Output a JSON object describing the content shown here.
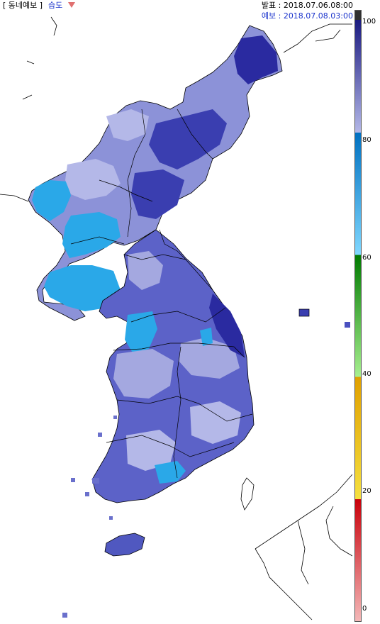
{
  "header": {
    "forecast_label": "[ 동네예보 ]",
    "variable_label": "습도",
    "issued_label": "발표 : 2018.07.06.08:00",
    "valid_label": "예보 : 2018.07.08.03:00"
  },
  "legend": {
    "ticks": [
      "100",
      "80",
      "60",
      "40",
      "20",
      "0"
    ],
    "bands": [
      {
        "range": "0-20",
        "colors": [
          "#f4b8b8",
          "#e05050",
          "#c8000a"
        ]
      },
      {
        "range": "20-40",
        "colors": [
          "#f5e040",
          "#e8b800",
          "#e0a000"
        ]
      },
      {
        "range": "40-60",
        "colors": [
          "#a8f090",
          "#40c040",
          "#007a00"
        ]
      },
      {
        "range": "60-80",
        "colors": [
          "#80d8ff",
          "#2aa8e8",
          "#0070c0"
        ]
      },
      {
        "range": "80-100",
        "colors": [
          "#b4b8e8",
          "#5058c0",
          "#1a1a80"
        ]
      },
      {
        "range": "top",
        "colors": [
          "#303030"
        ]
      }
    ]
  },
  "map": {
    "palette": {
      "very_high": "#2a2aa0",
      "high": "#4a50c0",
      "mid_high": "#7478cc",
      "mid": "#9aa0dc",
      "low": "#b8bce8",
      "cyan": "#2aa8e8",
      "cyan_light": "#60c0f0",
      "outline": "#000000"
    }
  }
}
